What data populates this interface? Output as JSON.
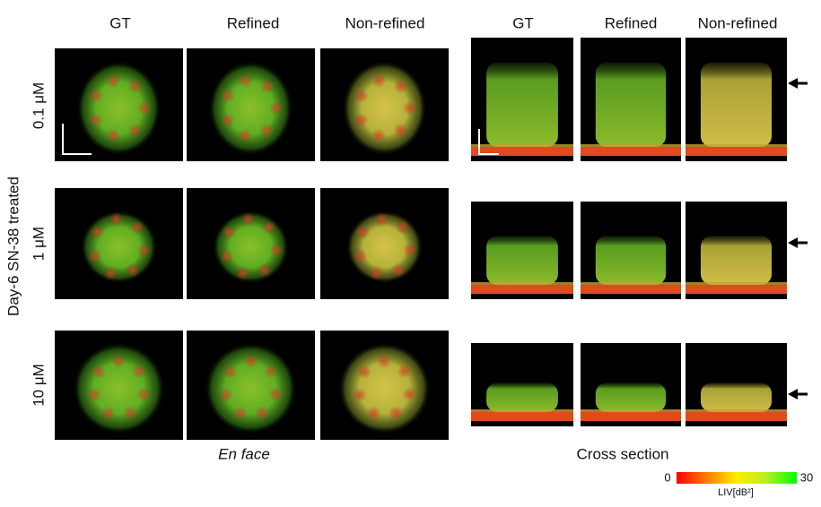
{
  "side_label": "Day-6 SN-38 treated",
  "en_face": {
    "columns": [
      "GT",
      "Refined",
      "Non-refined"
    ],
    "caption": "En face"
  },
  "cross_section": {
    "columns": [
      "GT",
      "Refined",
      "Non-refined"
    ],
    "caption": "Cross section"
  },
  "rows": [
    "0.1 μM",
    "1 μM",
    "10 μM"
  ],
  "colorbar": {
    "min_label": "0",
    "max_label": "30",
    "label": "LIV[dB²]"
  }
}
